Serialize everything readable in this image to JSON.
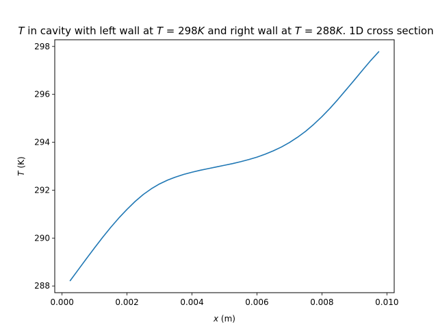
{
  "chart_data": {
    "type": "line",
    "title": "T in cavity with left wall at T = 298K and right wall at T = 288K. 1D cross section",
    "title_parts": [
      {
        "text": "T",
        "italic": true
      },
      {
        "text": " in cavity with left wall at ",
        "italic": false
      },
      {
        "text": "T",
        "italic": true
      },
      {
        "text": " = 298",
        "italic": false
      },
      {
        "text": "K",
        "italic": true
      },
      {
        "text": " and right wall at ",
        "italic": false
      },
      {
        "text": "T",
        "italic": true
      },
      {
        "text": " = 288",
        "italic": false
      },
      {
        "text": "K",
        "italic": true
      },
      {
        "text": ". 1D cross section",
        "italic": false
      }
    ],
    "xlabel": "x (m)",
    "xlabel_parts": [
      {
        "text": "x",
        "italic": true
      },
      {
        "text": " (m)",
        "italic": false
      }
    ],
    "ylabel": "T (K)",
    "ylabel_parts": [
      {
        "text": "T",
        "italic": true
      },
      {
        "text": " (K)",
        "italic": false
      }
    ],
    "xlim": [
      -0.000225,
      0.010225
    ],
    "ylim": [
      287.72,
      298.28
    ],
    "xticks": [
      0.0,
      0.002,
      0.004,
      0.006,
      0.008,
      0.01
    ],
    "xtick_labels": [
      "0.000",
      "0.002",
      "0.004",
      "0.006",
      "0.008",
      "0.010"
    ],
    "yticks": [
      288,
      290,
      292,
      294,
      296,
      298
    ],
    "ytick_labels": [
      "288",
      "290",
      "292",
      "294",
      "296",
      "298"
    ],
    "grid": false,
    "series": [
      {
        "color": "#1f77b4",
        "x": [
          0.00025,
          0.0005,
          0.00075,
          0.001,
          0.00125,
          0.0015,
          0.00175,
          0.002,
          0.00225,
          0.0025,
          0.00275,
          0.003,
          0.00325,
          0.0035,
          0.00375,
          0.004,
          0.00425,
          0.0045,
          0.00475,
          0.005,
          0.00525,
          0.0055,
          0.00575,
          0.006,
          0.00625,
          0.0065,
          0.00675,
          0.007,
          0.00725,
          0.0075,
          0.00775,
          0.008,
          0.00825,
          0.0085,
          0.00875,
          0.009,
          0.00925,
          0.0095,
          0.00975
        ],
        "y": [
          288.22,
          288.68,
          289.14,
          289.59,
          290.03,
          290.45,
          290.84,
          291.2,
          291.53,
          291.82,
          292.06,
          292.26,
          292.42,
          292.55,
          292.66,
          292.75,
          292.83,
          292.9,
          292.97,
          293.04,
          293.11,
          293.19,
          293.28,
          293.38,
          293.5,
          293.64,
          293.8,
          293.99,
          294.21,
          294.46,
          294.75,
          295.07,
          295.42,
          295.8,
          296.2,
          296.6,
          297.01,
          297.41,
          297.78
        ]
      }
    ]
  }
}
